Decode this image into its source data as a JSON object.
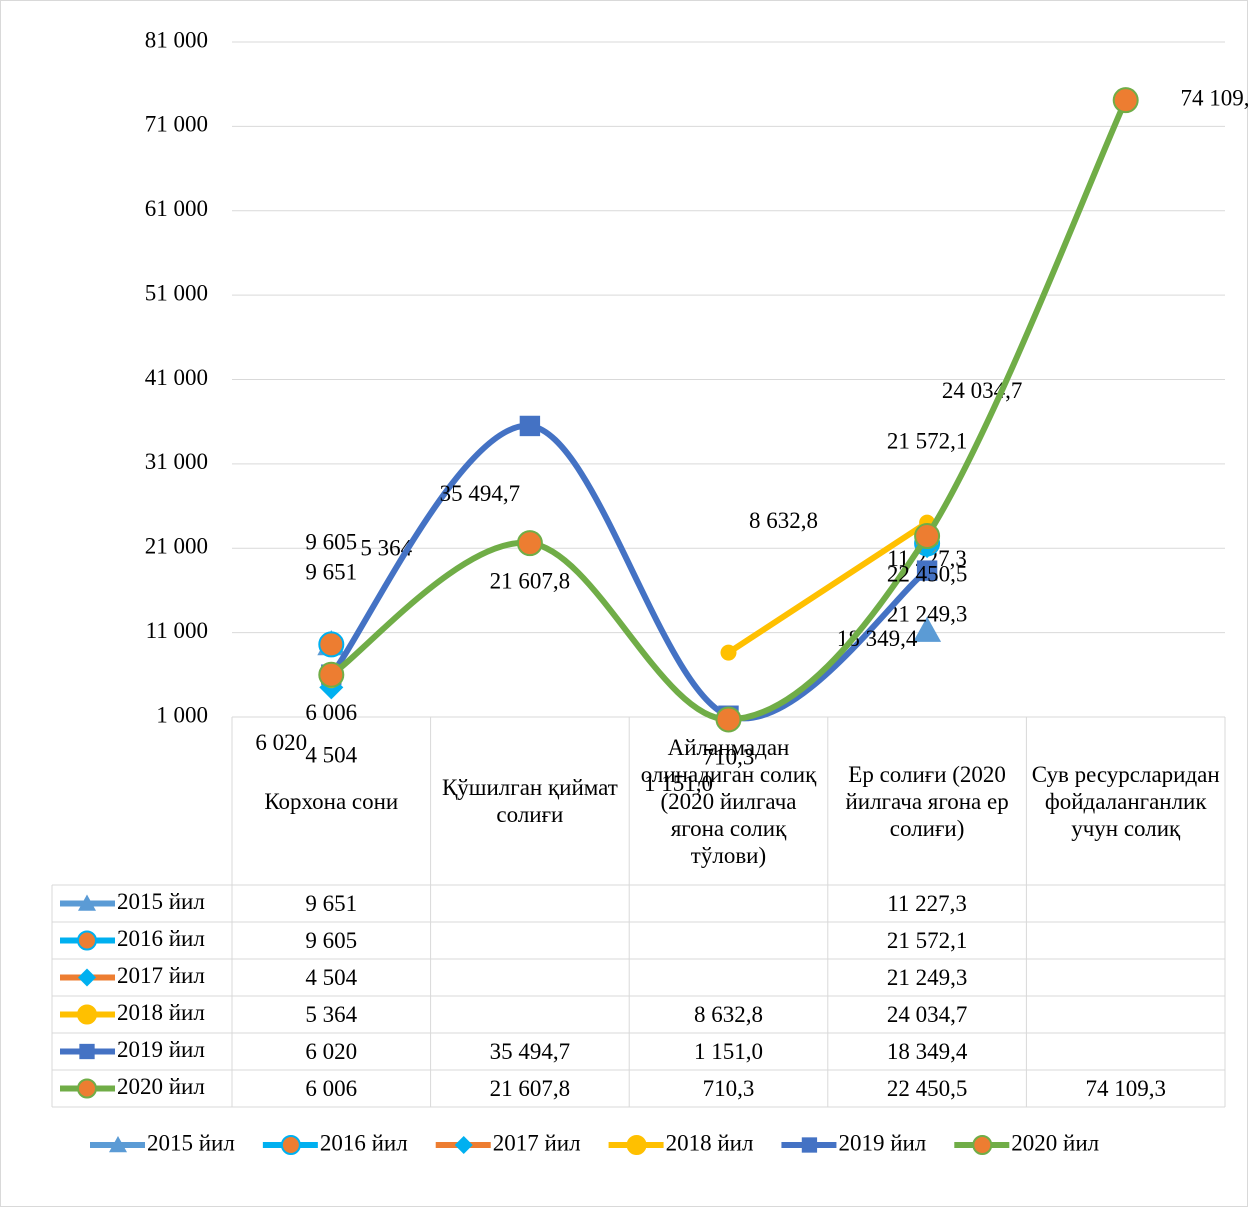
{
  "chart_data": {
    "type": "line",
    "categories": [
      "Корхона сони",
      "Қўшилган қиймат солиғи",
      "Айланмадан олинадиган солиқ (2020 йилгача ягона солиқ тўлови)",
      "Ер солиғи (2020 йилгача ягона ер солиғи)",
      "Сув ресурсларидан фойдаланганлик учун солиқ"
    ],
    "series": [
      {
        "name": "2015 йил",
        "color": "#5b9bd5",
        "marker": "triangle",
        "marker_color": "#5b9bd5",
        "values": [
          9651,
          null,
          null,
          11227.3,
          null
        ],
        "value_labels": [
          "9 651",
          null,
          null,
          "11 227,3",
          null
        ]
      },
      {
        "name": "2016 йил",
        "color": "#00b0f0",
        "marker": "circle",
        "marker_color": "#ed7d31",
        "values": [
          9605,
          null,
          null,
          21572.1,
          null
        ],
        "value_labels": [
          "9 605",
          null,
          null,
          "21 572,1",
          null
        ]
      },
      {
        "name": "2017 йил",
        "color": "#ed7d31",
        "marker": "diamond",
        "marker_color": "#00b0f0",
        "values": [
          4504,
          null,
          null,
          21249.3,
          null
        ],
        "value_labels": [
          "4 504",
          null,
          null,
          "21 249,3",
          null
        ]
      },
      {
        "name": "2018 йил",
        "color": "#ffc000",
        "marker": "circle",
        "marker_color": "#ffc000",
        "values": [
          5364,
          null,
          8632.8,
          24034.7,
          null
        ],
        "value_labels": [
          "5 364",
          null,
          "8 632,8",
          "24 034,7",
          null
        ]
      },
      {
        "name": "2019 йил",
        "color": "#4472c4",
        "marker": "square",
        "marker_color": "#4472c4",
        "values": [
          6020,
          35494.7,
          1151.0,
          18349.4,
          null
        ],
        "value_labels": [
          "6 020",
          "35 494,7",
          "1 151,0",
          "18 349,4",
          null
        ]
      },
      {
        "name": "2020 йил",
        "color": "#70ad47",
        "marker": "circle",
        "marker_color": "#ed7d31",
        "values": [
          6006,
          21607.8,
          710.3,
          22450.5,
          74109.3
        ],
        "value_labels": [
          "6 006",
          "21 607,8",
          "710,3",
          "22 450,5",
          "74 109,3"
        ]
      }
    ],
    "ylim": [
      1000,
      81000
    ],
    "yticks": [
      {
        "value": 1000,
        "label": "1 000"
      },
      {
        "value": 11000,
        "label": "11 000"
      },
      {
        "value": 21000,
        "label": "21 000"
      },
      {
        "value": 31000,
        "label": "31 000"
      },
      {
        "value": 41000,
        "label": "41 000"
      },
      {
        "value": 51000,
        "label": "51 000"
      },
      {
        "value": 61000,
        "label": "61 000"
      },
      {
        "value": 71000,
        "label": "71 000"
      },
      {
        "value": 81000,
        "label": "81 000"
      }
    ],
    "grid": true,
    "smooth": true,
    "data_table": true,
    "legend": "bottom"
  }
}
